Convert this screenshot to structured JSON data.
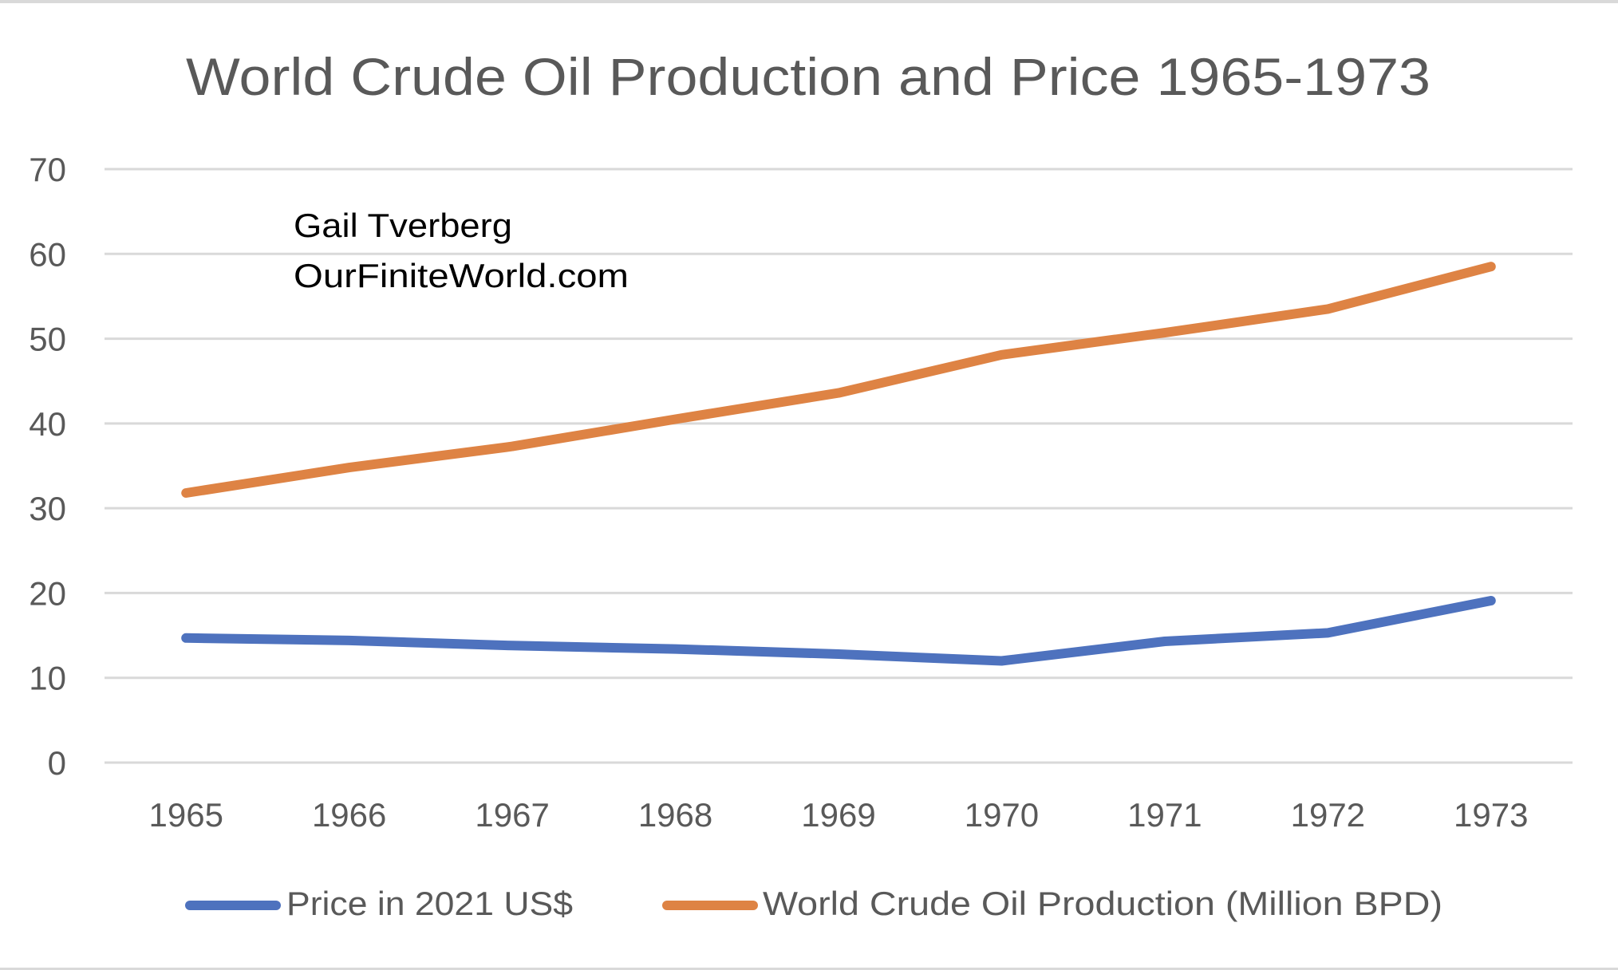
{
  "chart_data": {
    "type": "line",
    "title": "World Crude Oil Production and Price 1965-1973",
    "annotation": [
      "Gail Tverberg",
      "OurFiniteWorld.com"
    ],
    "xlabel": "",
    "ylabel": "",
    "categories": [
      "1965",
      "1966",
      "1967",
      "1968",
      "1969",
      "1970",
      "1971",
      "1972",
      "1973"
    ],
    "ylim": [
      0,
      70
    ],
    "yticks": [
      "0",
      "10",
      "20",
      "30",
      "40",
      "50",
      "60",
      "70"
    ],
    "grid": true,
    "legend_position": "bottom",
    "series": [
      {
        "name": "Price in 2021 US$",
        "color": "#4e72be",
        "values": [
          14.7,
          14.4,
          13.8,
          13.4,
          12.8,
          12.0,
          14.3,
          15.3,
          19.1
        ]
      },
      {
        "name": "World Crude Oil Production (Million BPD)",
        "color": "#de8344",
        "values": [
          31.8,
          34.8,
          37.3,
          40.5,
          43.6,
          48.1,
          50.7,
          53.5,
          58.5
        ]
      }
    ]
  },
  "colors": {
    "text": "#595959",
    "annotation_text": "#000000",
    "gridline": "#d9d9d9",
    "border": "#d9d9d9"
  }
}
